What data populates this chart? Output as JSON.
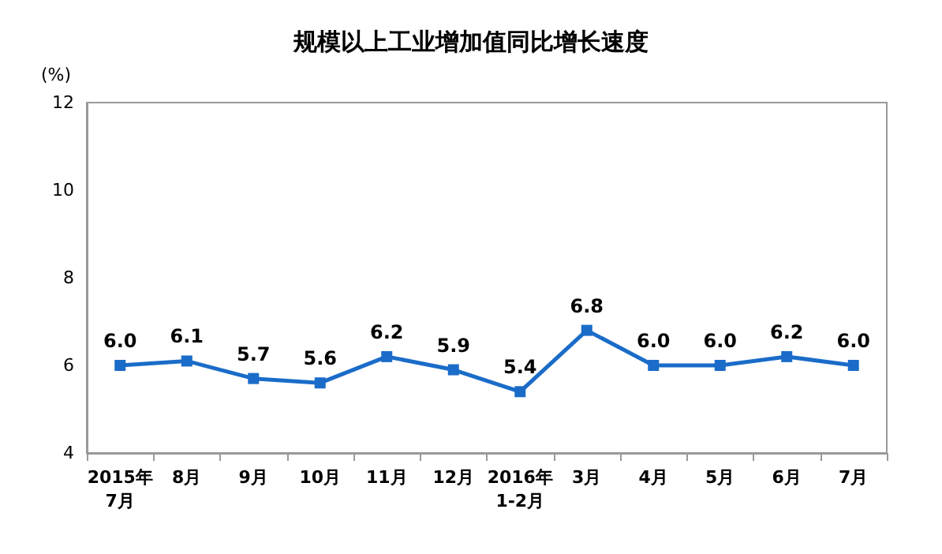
{
  "chart_data": {
    "type": "line",
    "title": "规模以上工业增加值同比增长速度",
    "ylabel": "(%)",
    "categories": [
      "2015年\n7月",
      "8月",
      "9月",
      "10月",
      "11月",
      "12月",
      "2016年\n1-2月",
      "3月",
      "4月",
      "5月",
      "6月",
      "7月"
    ],
    "series": [
      {
        "color": "#1a6cc8",
        "values": [
          6.0,
          6.1,
          5.7,
          5.6,
          6.2,
          5.9,
          5.4,
          6.8,
          6.0,
          6.0,
          6.2,
          6.0
        ],
        "value_labels": [
          "6.0",
          "6.1",
          "5.7",
          "5.6",
          "6.2",
          "5.9",
          "5.4",
          "6.8",
          "6.0",
          "6.0",
          "6.2",
          "6.0"
        ]
      }
    ],
    "ylim": [
      4,
      12
    ],
    "yticks": [
      4,
      6,
      8,
      10,
      12
    ],
    "grid": false,
    "marker": "square",
    "line_style": "solid"
  }
}
